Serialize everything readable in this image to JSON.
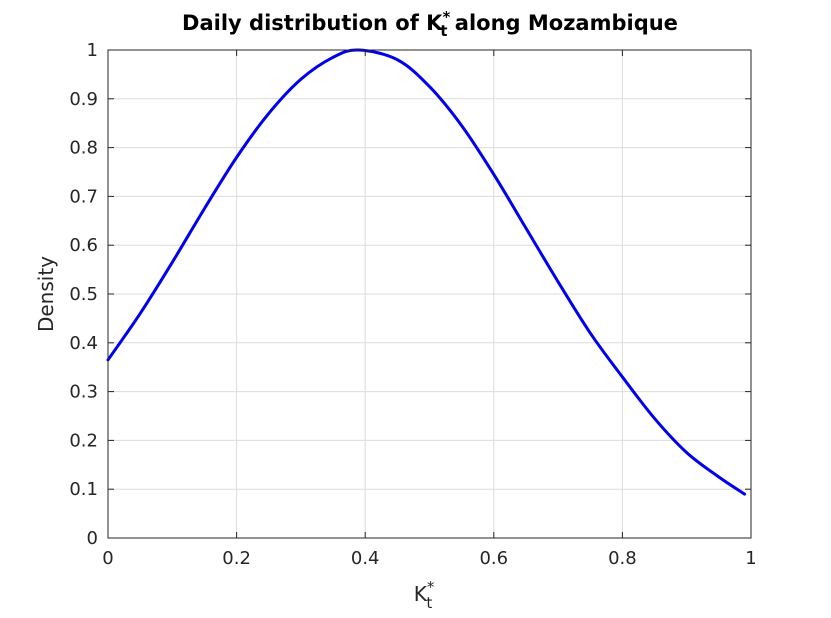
{
  "chart_data": {
    "type": "line",
    "title_prefix": "Daily distribution of K",
    "title_sup": "*",
    "title_sub": "t",
    "title_suffix": " along Mozambique",
    "xlabel_base": "K",
    "xlabel_sup": "*",
    "xlabel_sub": "t",
    "ylabel": "Density",
    "xlim": [
      0,
      1
    ],
    "ylim": [
      0,
      1
    ],
    "xticks": [
      0,
      0.2,
      0.4,
      0.6,
      0.8,
      1
    ],
    "xtick_labels": [
      "0",
      "0.2",
      "0.4",
      "0.6",
      "0.8",
      "1"
    ],
    "yticks": [
      0,
      0.1,
      0.2,
      0.3,
      0.4,
      0.5,
      0.6,
      0.7,
      0.8,
      0.9,
      1
    ],
    "ytick_labels": [
      "0",
      "0.1",
      "0.2",
      "0.3",
      "0.4",
      "0.5",
      "0.6",
      "0.7",
      "0.8",
      "0.9",
      "1"
    ],
    "grid": true,
    "series": [
      {
        "color": "#0000ee",
        "x": [
          0,
          0.05,
          0.1,
          0.15,
          0.2,
          0.25,
          0.3,
          0.35,
          0.39,
          0.45,
          0.5,
          0.55,
          0.6,
          0.65,
          0.7,
          0.75,
          0.8,
          0.85,
          0.9,
          0.95,
          0.99
        ],
        "y": [
          0.365,
          0.46,
          0.565,
          0.675,
          0.78,
          0.87,
          0.94,
          0.985,
          1.0,
          0.98,
          0.925,
          0.845,
          0.745,
          0.635,
          0.525,
          0.42,
          0.33,
          0.245,
          0.175,
          0.125,
          0.09
        ]
      }
    ]
  }
}
